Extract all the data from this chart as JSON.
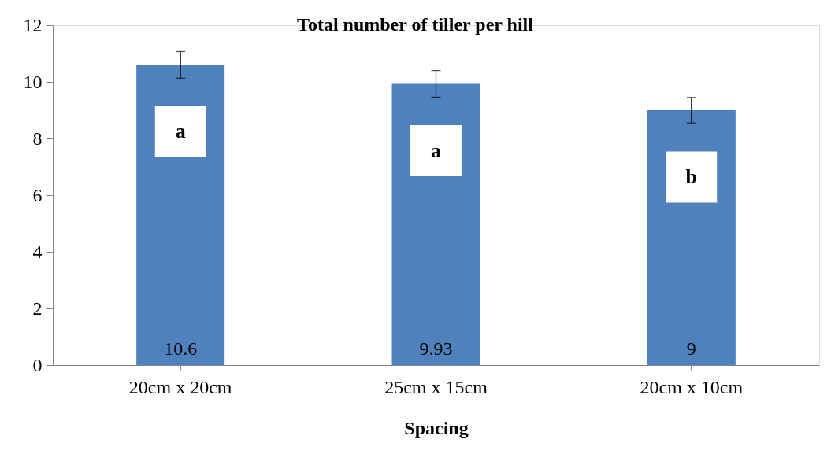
{
  "chart_data": {
    "type": "bar",
    "title": "Total  number of tiller per hill",
    "xlabel": "Spacing",
    "categories": [
      "20cm x 20cm",
      "25cm x 15cm",
      "20cm x 10cm"
    ],
    "values": [
      10.6,
      9.93,
      9
    ],
    "errors": [
      0.47,
      0.47,
      0.45
    ],
    "color": "#4f81bd",
    "data_labels": true,
    "ylim": [
      0,
      12
    ],
    "yticks": [
      0,
      2,
      4,
      6,
      8,
      10,
      12
    ],
    "grid": false,
    "annotations": [
      "a",
      "a",
      "b"
    ]
  }
}
